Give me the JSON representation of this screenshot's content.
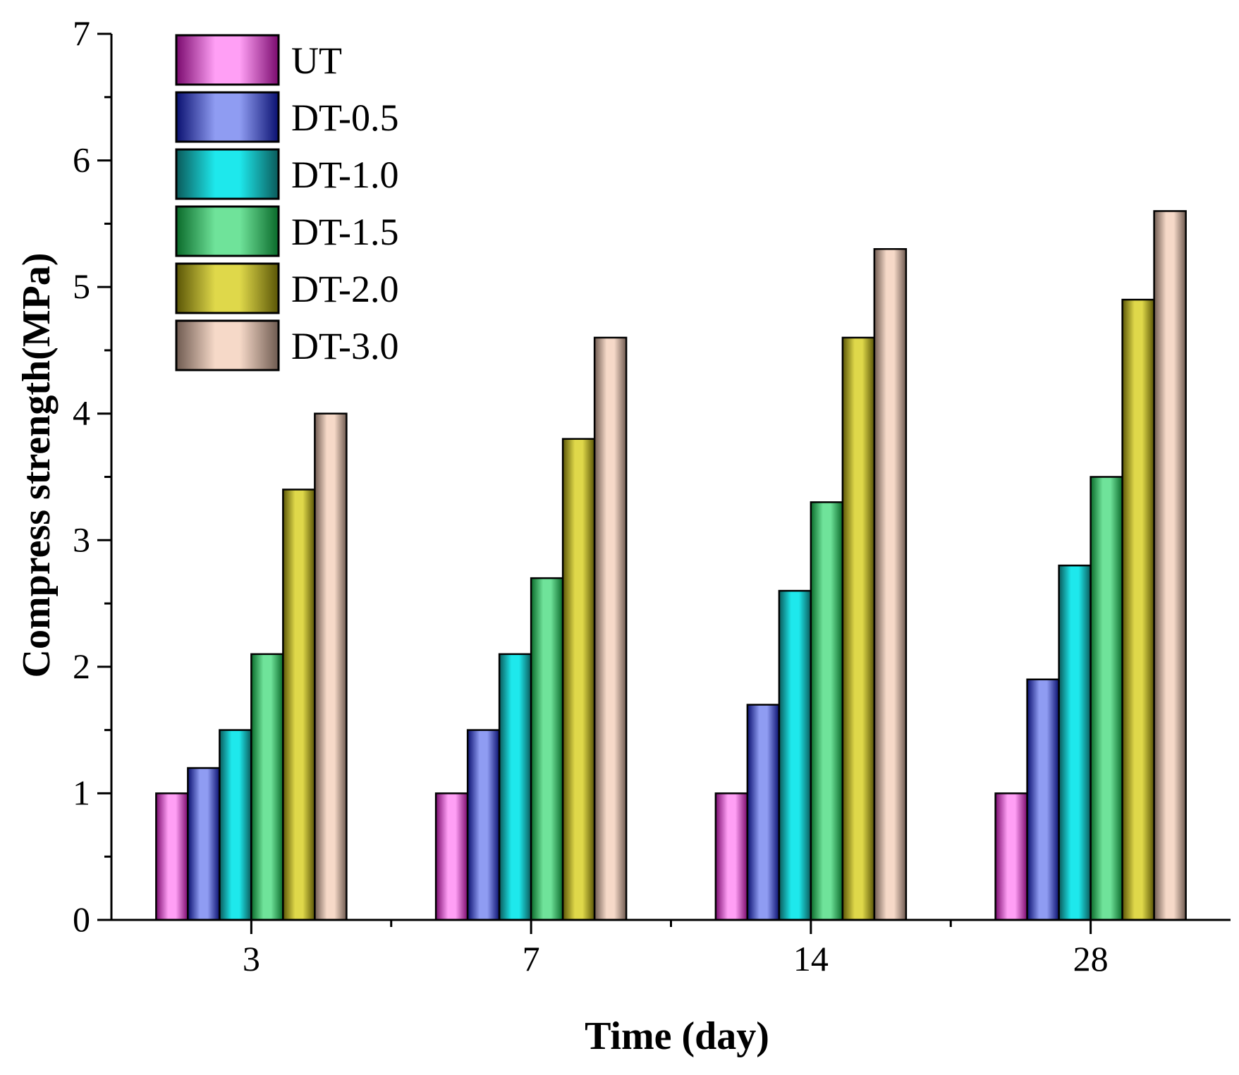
{
  "chart_data": {
    "type": "bar",
    "title": "",
    "xlabel": "Time (day)",
    "ylabel": "Compress strength(MPa)",
    "categories": [
      "3",
      "7",
      "14",
      "28"
    ],
    "ylim": [
      0,
      7
    ],
    "yticks": [
      "0",
      "1",
      "2",
      "3",
      "4",
      "5",
      "6",
      "7"
    ],
    "grid": false,
    "legend_position": "top-left",
    "series": [
      {
        "name": "UT",
        "color": "#ff9ff5",
        "edge": "#7a0a6e",
        "values": [
          1.0,
          1.0,
          1.0,
          1.0
        ]
      },
      {
        "name": "DT-0.5",
        "color": "#8f9cf2",
        "edge": "#0a1070",
        "values": [
          1.2,
          1.5,
          1.7,
          1.9
        ]
      },
      {
        "name": "DT-1.0",
        "color": "#1ee8ec",
        "edge": "#0a5a5a",
        "values": [
          1.5,
          2.1,
          2.6,
          2.8
        ]
      },
      {
        "name": "DT-1.5",
        "color": "#6fe39a",
        "edge": "#0a6a2a",
        "values": [
          2.1,
          2.7,
          3.3,
          3.5
        ]
      },
      {
        "name": "DT-2.0",
        "color": "#dfd84a",
        "edge": "#5a5506",
        "values": [
          3.4,
          3.8,
          4.6,
          4.9
        ]
      },
      {
        "name": "DT-3.0",
        "color": "#f6d9c8",
        "edge": "#6e5a50",
        "values": [
          4.0,
          4.6,
          5.3,
          5.6
        ]
      }
    ]
  }
}
